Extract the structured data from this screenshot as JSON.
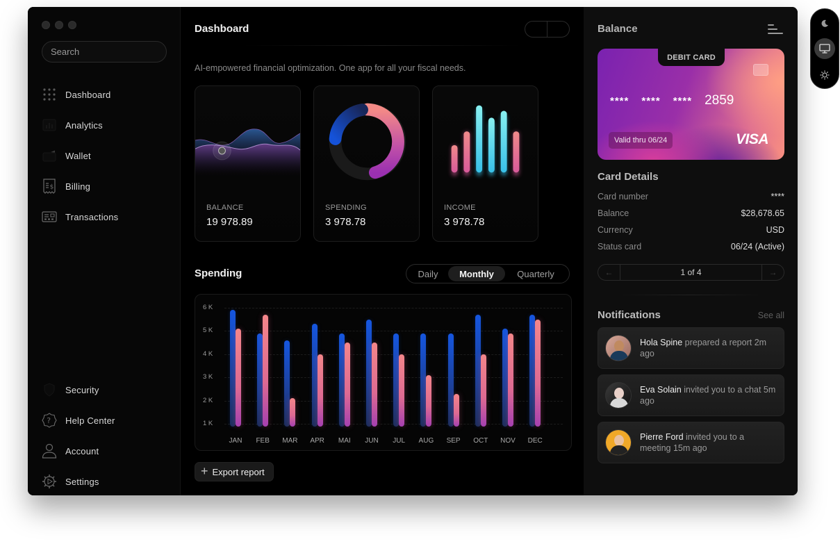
{
  "window": {
    "traffic_lights": [
      "close",
      "minimize",
      "maximize"
    ]
  },
  "sidebar": {
    "search": {
      "placeholder": "Search",
      "value": ""
    },
    "items_top": [
      {
        "label": "Dashboard",
        "icon": "grid-dots-icon"
      },
      {
        "label": "Analytics",
        "icon": "analytics-icon"
      },
      {
        "label": "Wallet",
        "icon": "wallet-icon"
      },
      {
        "label": "Billing",
        "icon": "receipt-icon"
      },
      {
        "label": "Transactions",
        "icon": "transactions-icon"
      }
    ],
    "items_bottom": [
      {
        "label": "Security",
        "icon": "shield-icon"
      },
      {
        "label": "Help Center",
        "icon": "help-icon"
      },
      {
        "label": "Account",
        "icon": "user-icon"
      },
      {
        "label": "Settings",
        "icon": "gear-icon"
      }
    ]
  },
  "main": {
    "title": "Dashboard",
    "subtitle": "AI-empowered financial optimization. One app for all your fiscal needs.",
    "stats": [
      {
        "label": "BALANCE",
        "value": "19 978.89",
        "viz": "wave"
      },
      {
        "label": "SPENDING",
        "value": "3 978.78",
        "viz": "donut"
      },
      {
        "label": "INCOME",
        "value": "3 978.78",
        "viz": "bars"
      }
    ],
    "spending": {
      "title": "Spending",
      "tabs": [
        {
          "label": "Daily",
          "active": false
        },
        {
          "label": "Monthly",
          "active": true
        },
        {
          "label": "Quarterly",
          "active": false
        }
      ]
    },
    "export_label": "Export report"
  },
  "chart_data": {
    "type": "bar",
    "title": "Spending",
    "xlabel": "",
    "ylabel": "",
    "categories": [
      "JAN",
      "FEB",
      "MAR",
      "APR",
      "MAI",
      "JUN",
      "JUL",
      "AUG",
      "SEP",
      "OCT",
      "NOV",
      "DEC"
    ],
    "series": [
      {
        "name": "series-blue",
        "color": "#1556e0",
        "values": [
          5.9,
          4.9,
          4.6,
          5.3,
          4.9,
          5.5,
          4.9,
          4.9,
          4.9,
          5.7,
          5.1,
          5.7
        ]
      },
      {
        "name": "series-pink",
        "color": "#f4868a",
        "values": [
          5.1,
          5.7,
          2.1,
          4.0,
          4.5,
          4.5,
          4.0,
          3.1,
          2.3,
          4.0,
          4.9,
          5.5
        ]
      }
    ],
    "y_ticks": [
      "1 K",
      "2 K",
      "3 K",
      "4 K",
      "5 K",
      "6 K"
    ],
    "ylim": [
      1,
      6
    ],
    "unit": "K",
    "grid": true,
    "legend": "none"
  },
  "right_panel": {
    "title": "Balance",
    "card": {
      "type_label": "DEBIT CARD",
      "number_masked": [
        "****",
        "****",
        "****"
      ],
      "last4": "2859",
      "valid_thru": "Valid thru 06/24",
      "brand": "VISA"
    },
    "details": {
      "title": "Card Details",
      "rows": [
        {
          "key": "Card number",
          "value": "****"
        },
        {
          "key": "Balance",
          "value": "$28,678.65"
        },
        {
          "key": "Currency",
          "value": "USD"
        },
        {
          "key": "Status card",
          "value": "06/24 (Active)"
        }
      ]
    },
    "pager": {
      "label": "1 of 4",
      "prev": "←",
      "next": "→"
    },
    "notifications": {
      "title": "Notifications",
      "see_all": "See all",
      "items": [
        {
          "name": "Hola Spine",
          "text": " prepared a report 2m ago"
        },
        {
          "name": "Eva Solain",
          "text": " invited you to a chat 5m ago"
        },
        {
          "name": "Pierre Ford",
          "text": " invited you to a meeting 15m ago"
        }
      ]
    }
  },
  "theme_switcher": {
    "options": [
      "dark",
      "system",
      "light"
    ],
    "active": "system"
  },
  "colors": {
    "accent_blue": "#1556e0",
    "accent_pink": "#f4868a",
    "accent_purple": "#a540b0",
    "accent_cyan": "#5fe0f0"
  }
}
